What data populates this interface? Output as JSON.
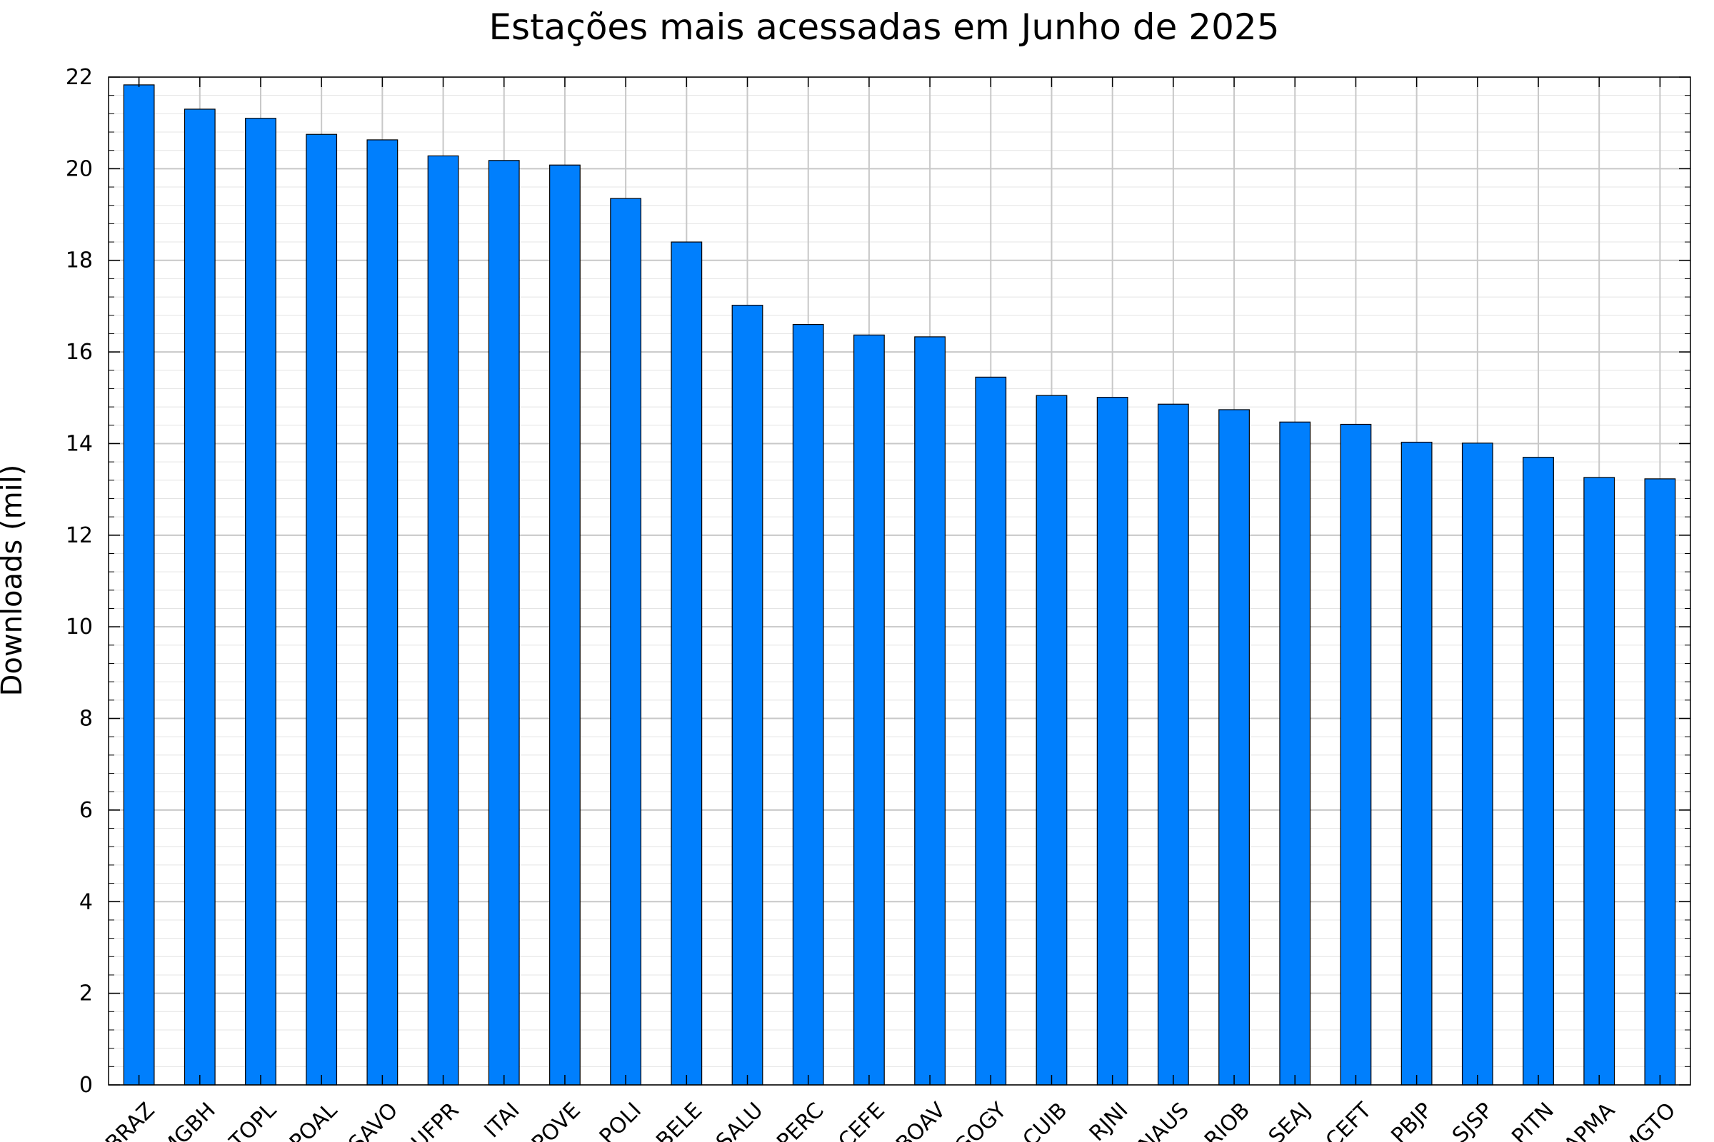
{
  "chart_data": {
    "type": "bar",
    "title": "Estações mais acessadas em Junho de 2025",
    "xlabel": "",
    "ylabel": "Downloads (mil)",
    "categories": [
      "BRAZ",
      "MGBH",
      "TOPL",
      "POAL",
      "SAVO",
      "UFPR",
      "ITAI",
      "POVE",
      "POLI",
      "BELE",
      "SALU",
      "PERC",
      "CEFE",
      "BOAV",
      "GOGY",
      "CUIB",
      "RJNI",
      "NAUS",
      "RIOB",
      "SEAJ",
      "CEFT",
      "PBJP",
      "SJSP",
      "PITN",
      "APMA",
      "MGTO"
    ],
    "values": [
      21.83,
      21.3,
      21.1,
      20.75,
      20.63,
      20.28,
      20.18,
      20.08,
      19.35,
      18.4,
      17.02,
      16.6,
      16.37,
      16.33,
      15.45,
      15.05,
      15.01,
      14.86,
      14.74,
      14.47,
      14.42,
      14.03,
      14.01,
      13.7,
      13.26,
      13.23
    ],
    "ylim": [
      0,
      22
    ],
    "yticks": [
      0,
      2,
      4,
      6,
      8,
      10,
      12,
      14,
      16,
      18,
      20,
      22
    ],
    "grid": true,
    "colors": {
      "bar": "#007ffd",
      "bar_edge": "#000000",
      "grid_major": "#c8c8c8",
      "grid_minor": "#e4e4e4",
      "axis": "#000000"
    }
  }
}
